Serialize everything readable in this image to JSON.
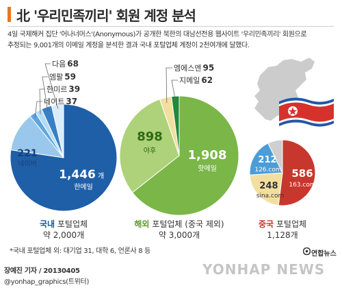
{
  "header": {
    "title": "北 '우리민족끼리' 회원 계정 분석",
    "intro_line1": "4일 국제해커 집단 '어나너머스'(Anonymous)가 공개한 북한의 대남선전용 웹사이트 '우리민족끼리' 회원으로",
    "intro_line2": "추정되는 9,001개의 이메일 계정을 분석한 결과 국내 포털업체 계정이 2천여개에 달했다."
  },
  "colors": {
    "title_bar": "#e8771f",
    "domestic_dark": "#1f5fa8",
    "domestic_label": "#1a56a0",
    "overseas_green": "#7ab648",
    "overseas_light": "#aed27a",
    "overseas_label": "#5a9a2c",
    "china_red": "#c8372d",
    "china_blue": "#4b9dd8",
    "china_yellow": "#f2dfa0",
    "china_label": "#c8372d",
    "map_gray": "#cccccc",
    "leader_line": "#666666"
  },
  "icons": [
    "north-korea-map-icon",
    "north-korea-flag-icon",
    "yonhap-logo-icon"
  ],
  "chart_data": [
    {
      "type": "pie",
      "title": "국내 포털업체",
      "title_highlight": "국내",
      "subtitle": "약 2,000개",
      "slices": [
        {
          "name": "한메일",
          "value": 1446,
          "label_value": "1,446",
          "unit": "개",
          "color": "#1f5fa8"
        },
        {
          "name": "네이버",
          "value": 221,
          "label_value": "221",
          "color": "#99c8ec"
        },
        {
          "name": "네이트",
          "value": 37,
          "label_value": "37",
          "color": "#5ea6dc"
        },
        {
          "name": "한미르",
          "value": 39,
          "label_value": "39",
          "color": "#b5dbf4"
        },
        {
          "name": "엠팔",
          "value": 59,
          "label_value": "59",
          "color": "#3a7fc4"
        },
        {
          "name": "다음",
          "value": 68,
          "label_value": "68",
          "color": "#d8ecfa"
        }
      ]
    },
    {
      "type": "pie",
      "title": "해외 포털업체 (중국 제외)",
      "title_highlight": "해외",
      "subtitle": "약 3,000개",
      "slices": [
        {
          "name": "핫메일",
          "value": 1908,
          "label_value": "1,908",
          "color": "#7ab648"
        },
        {
          "name": "야후",
          "value": 898,
          "label_value": "898",
          "color": "#aed27a"
        },
        {
          "name": "엠에스엔",
          "value": 95,
          "label_value": "95",
          "color": "#f2dfa0"
        },
        {
          "name": "지메일",
          "value": 62,
          "label_value": "62",
          "color": "#1f8a3a"
        }
      ]
    },
    {
      "type": "pie",
      "title": "중국 포털업체",
      "title_highlight": "중국",
      "subtitle": "1,128개",
      "slices": [
        {
          "name": "163.com",
          "value": 586,
          "label_value": "586",
          "color": "#c8372d"
        },
        {
          "name": "sina.com",
          "value": 248,
          "label_value": "248",
          "color": "#f2dfa0"
        },
        {
          "name": "126.com",
          "value": 212,
          "label_value": "212",
          "color": "#4b9dd8"
        },
        {
          "name": "",
          "value": 82,
          "label_value": "",
          "color": "#cfcfcf"
        }
      ]
    }
  ],
  "footer": {
    "note": "*국내 포털업체 외: 대기업 31, 대학 6, 언론사 8 등",
    "author": "장예진 기자 / 20130405",
    "handle": "@yonhap_graphics(트위터)",
    "logo_text": "연합뉴스",
    "watermark": "YONHAP NEWS"
  }
}
